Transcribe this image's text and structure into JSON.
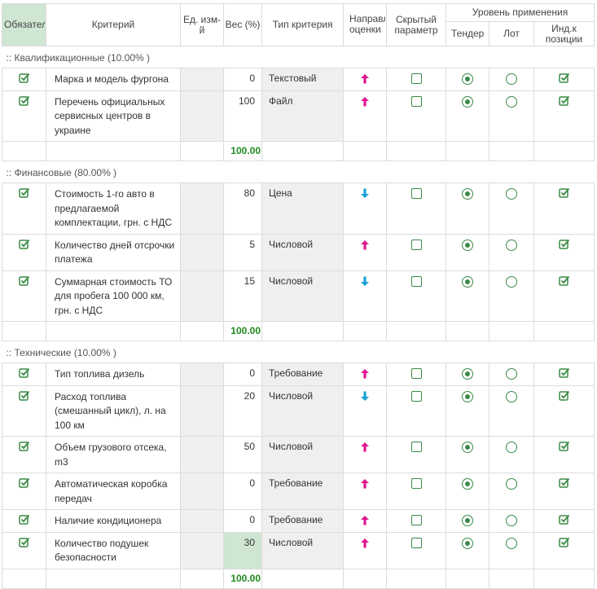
{
  "colors": {
    "accent_green": "#3a8a45",
    "sum_green": "#1f8a1f",
    "arrow_up": "#e0168e",
    "arrow_down": "#1aa2d6"
  },
  "headers": {
    "required": "Обязательный",
    "criterion": "Критерий",
    "unit": "Ед. изм-й",
    "weight": "Вес (%)",
    "type": "Тип критерия",
    "direction": "Направление оценки",
    "hidden": "Скрытый параметр",
    "level": "Уровень применения",
    "tender": "Тендер",
    "lot": "Лот",
    "position": "Инд.к позиции"
  },
  "groups": [
    {
      "title": ":: Квалификационные (10.00% )",
      "sum": "100.00",
      "rows": [
        {
          "name": "Марка и модель фургона",
          "weight": "0",
          "type": "Текстовый",
          "direction": "up"
        },
        {
          "name": "Перечень официальных сервисных центров в украине",
          "weight": "100",
          "type": "Файл",
          "direction": "up"
        }
      ]
    },
    {
      "title": ":: Финансовые (80.00% )",
      "sum": "100.00",
      "rows": [
        {
          "name": "Стоимость 1-го авто в предлагаемой комплектации, грн. с НДС",
          "weight": "80",
          "type": "Цена",
          "direction": "down"
        },
        {
          "name": "Количество дней отсрочки платежа",
          "weight": "5",
          "type": "Числовой",
          "direction": "up"
        },
        {
          "name": "Суммарная стоимость ТО для пробега 100 000 км, грн. с НДС",
          "weight": "15",
          "type": "Числовой",
          "direction": "down"
        }
      ]
    },
    {
      "title": ":: Технические (10.00% )",
      "sum": "100.00",
      "rows": [
        {
          "name": "Тип топлива дизель",
          "weight": "0",
          "type": "Требование",
          "direction": "up"
        },
        {
          "name": "Расход топлива (смешанный цикл), л. на 100 км",
          "weight": "20",
          "type": "Числовой",
          "direction": "down"
        },
        {
          "name": "Объем грузового отсека, m3",
          "weight": "50",
          "type": "Числовой",
          "direction": "up"
        },
        {
          "name": "Автоматическая коробка передач",
          "weight": "0",
          "type": "Требование",
          "direction": "up"
        },
        {
          "name": "Наличие кондиционера",
          "weight": "0",
          "type": "Требование",
          "direction": "up"
        },
        {
          "name": "Количество подушек безопасности",
          "weight": "30",
          "type": "Числовой",
          "direction": "up",
          "highlight": true
        }
      ]
    }
  ]
}
